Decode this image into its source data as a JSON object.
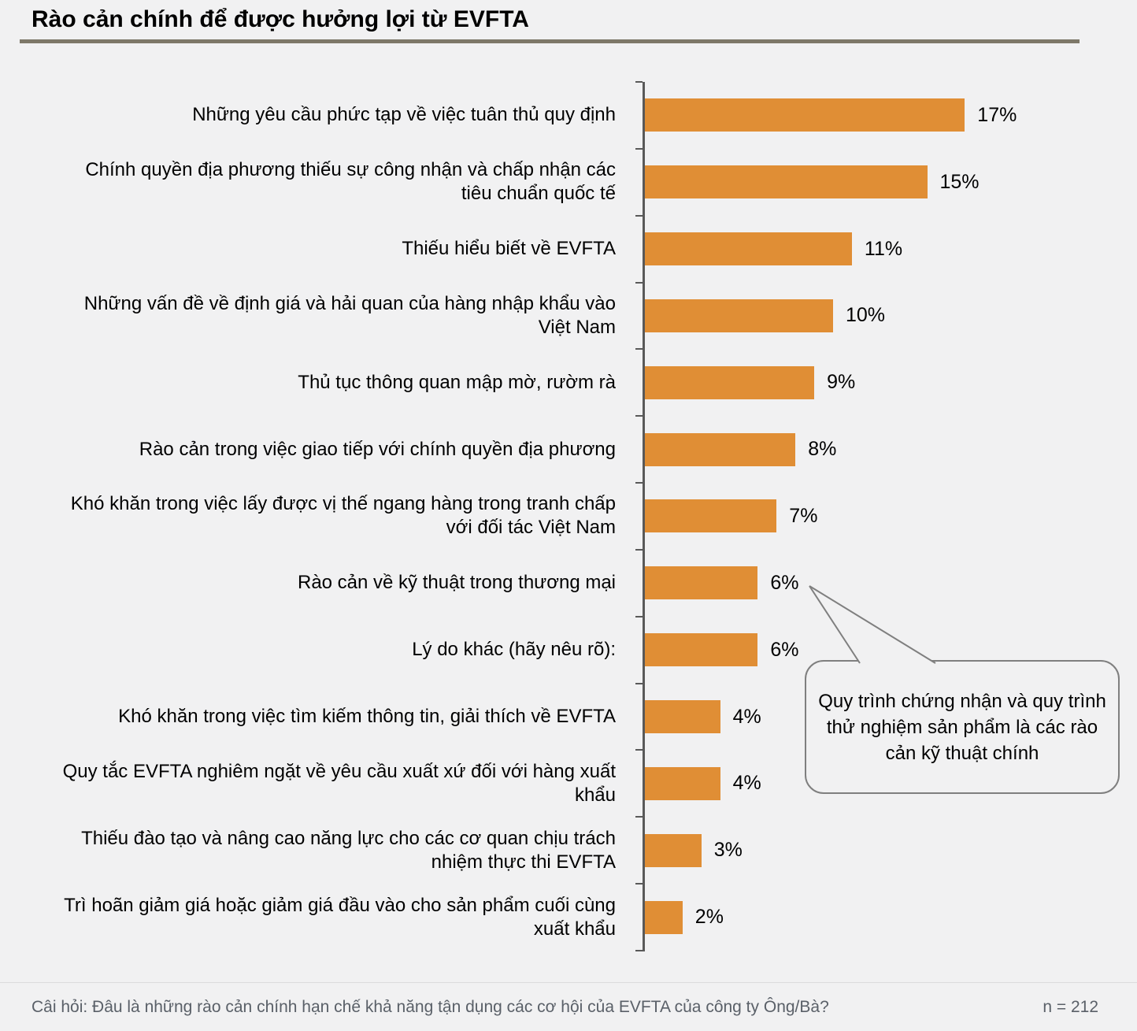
{
  "title": "Rào cản chính để được hưởng lợi từ EVFTA",
  "chart_data": {
    "type": "bar",
    "orientation": "horizontal",
    "title": "Rào cản chính để được hưởng lợi từ EVFTA",
    "categories": [
      "Những yêu cầu phức tạp về việc tuân thủ quy định",
      "Chính quyền địa phương thiếu sự công nhận và chấp nhận các tiêu chuẩn quốc tế",
      "Thiếu hiểu biết về EVFTA",
      "Những vấn đề về định giá và hải quan của hàng nhập khẩu vào Việt Nam",
      "Thủ tục thông quan mập mờ, rườm rà",
      "Rào cản trong việc giao tiếp với chính quyền địa phương",
      "Khó khăn trong việc lấy được vị thế ngang hàng trong tranh chấp với đối tác Việt Nam",
      "Rào cản về kỹ thuật trong thương mại",
      "Lý do khác (hãy nêu rõ):",
      "Khó khăn trong việc tìm kiếm thông tin, giải thích về EVFTA",
      "Quy tắc EVFTA nghiêm ngặt về yêu cầu xuất xứ đối với hàng xuất khẩu",
      "Thiếu đào tạo và nâng cao năng lực cho các cơ quan chịu trách nhiệm thực thi EVFTA",
      "Trì hoãn giảm giá hoặc giảm giá đầu vào cho sản phẩm cuối cùng xuất khẩu"
    ],
    "values": [
      17,
      15,
      11,
      10,
      9,
      8,
      7,
      6,
      6,
      4,
      4,
      3,
      2
    ],
    "value_suffix": "%",
    "xlabel": "",
    "ylabel": "",
    "xlim": [
      0,
      18
    ],
    "grid": false,
    "legend": false,
    "bar_color": "#e08e35",
    "axis_color": "#595959"
  },
  "annotation": {
    "text": "Quy trình chứng nhận và quy trình thử nghiệm sản phẩm là các rào cản kỹ thuật chính"
  },
  "footer": {
    "question": "Câi hỏi: Đâu là những rào cản chính hạn chế khả năng tận dụng các cơ hội của EVFTA của công ty Ông/Bà?",
    "sample_size": "n = 212"
  }
}
